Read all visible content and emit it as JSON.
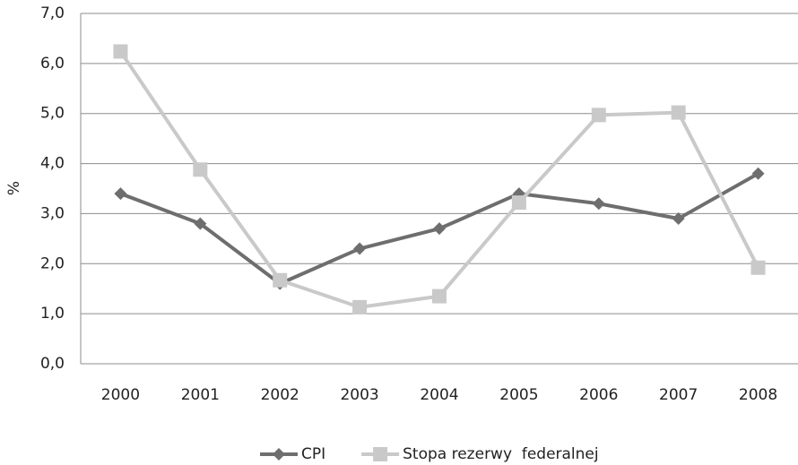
{
  "chart_data": {
    "type": "line",
    "y_label": "%",
    "categories": [
      "2000",
      "2001",
      "2002",
      "2003",
      "2004",
      "2005",
      "2006",
      "2007",
      "2008"
    ],
    "series": [
      {
        "name": "CPI",
        "color": "#6e6e6e",
        "marker": "diamond",
        "values": [
          3.4,
          2.8,
          1.6,
          2.3,
          2.7,
          3.4,
          3.2,
          2.9,
          3.8
        ]
      },
      {
        "name": "Stopa rezerwy  federalnej",
        "color": "#c9c9c9",
        "marker": "square",
        "values": [
          6.24,
          3.88,
          1.67,
          1.13,
          1.35,
          3.22,
          4.97,
          5.02,
          1.92
        ]
      }
    ],
    "ylim": [
      0,
      7
    ],
    "yticks": [
      {
        "value": 0,
        "label": "0,0"
      },
      {
        "value": 1,
        "label": "1,0"
      },
      {
        "value": 2,
        "label": "2,0"
      },
      {
        "value": 3,
        "label": "3,0"
      },
      {
        "value": 4,
        "label": "4,0"
      },
      {
        "value": 5,
        "label": "5,0"
      },
      {
        "value": 6,
        "label": "6,0"
      },
      {
        "value": 7,
        "label": "7,0"
      }
    ],
    "grid": true
  }
}
